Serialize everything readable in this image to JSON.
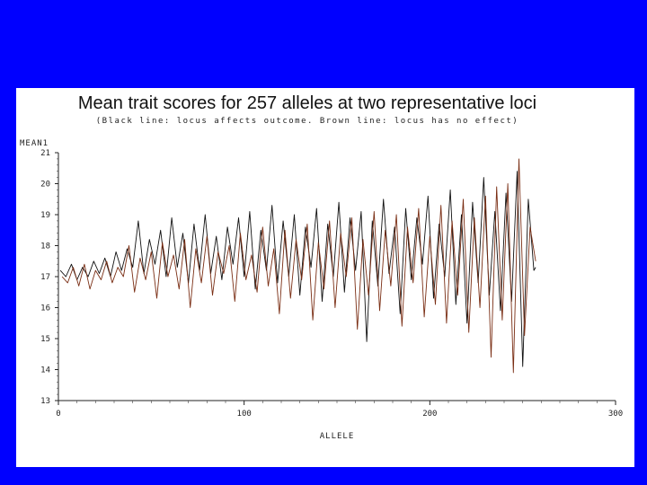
{
  "slide": {
    "background": "#0000ff"
  },
  "chart_data": {
    "type": "line",
    "title": "Mean trait scores for 257 alleles at two representative loci",
    "subtitle": "(Black line: locus affects outcome.  Brown line: locus has no effect)",
    "ylabel": "MEAN1",
    "xlabel": "ALLELE",
    "xlim": [
      0,
      300
    ],
    "ylim": [
      13,
      21
    ],
    "xticks": [
      0,
      100,
      200,
      300
    ],
    "yticks": [
      13,
      14,
      15,
      16,
      17,
      18,
      19,
      20,
      21
    ],
    "grid": false,
    "n_points": 257,
    "series": [
      {
        "name": "Black line: locus affects outcome",
        "color": "#111111",
        "x": [
          1,
          4,
          7,
          10,
          13,
          16,
          19,
          22,
          25,
          28,
          31,
          34,
          37,
          40,
          43,
          46,
          49,
          52,
          55,
          58,
          61,
          64,
          67,
          70,
          73,
          76,
          79,
          82,
          85,
          88,
          91,
          94,
          97,
          100,
          103,
          106,
          109,
          112,
          115,
          118,
          121,
          124,
          127,
          130,
          133,
          136,
          139,
          142,
          145,
          148,
          151,
          154,
          157,
          160,
          163,
          166,
          169,
          172,
          175,
          178,
          181,
          184,
          187,
          190,
          193,
          196,
          199,
          202,
          205,
          208,
          211,
          214,
          217,
          220,
          223,
          226,
          229,
          232,
          235,
          238,
          241,
          244,
          247,
          250,
          253,
          256,
          257
        ],
        "y": [
          17.2,
          17.0,
          17.4,
          16.9,
          17.3,
          17.0,
          17.5,
          17.1,
          17.6,
          17.0,
          17.8,
          17.2,
          17.9,
          17.3,
          18.8,
          17.1,
          18.2,
          17.4,
          18.5,
          17.0,
          18.9,
          17.3,
          18.4,
          16.8,
          18.7,
          17.2,
          19.0,
          17.1,
          18.3,
          16.9,
          18.6,
          17.4,
          18.9,
          17.0,
          19.1,
          16.6,
          18.5,
          17.2,
          19.3,
          16.8,
          18.8,
          17.0,
          19.0,
          16.4,
          18.6,
          17.3,
          19.2,
          16.2,
          18.7,
          17.0,
          19.4,
          16.5,
          18.9,
          17.2,
          19.1,
          14.9,
          18.8,
          16.7,
          19.5,
          17.1,
          18.6,
          15.8,
          19.2,
          16.9,
          18.9,
          17.4,
          19.6,
          16.3,
          18.7,
          17.0,
          19.8,
          16.1,
          19.0,
          15.5,
          19.4,
          16.8,
          20.2,
          16.4,
          19.1,
          15.9,
          19.7,
          16.2,
          20.4,
          14.1,
          19.5,
          17.2,
          17.3
        ]
      },
      {
        "name": "Brown line: locus has no effect",
        "color": "#7a2e14",
        "x": [
          2,
          5,
          8,
          11,
          14,
          17,
          20,
          23,
          26,
          29,
          32,
          35,
          38,
          41,
          44,
          47,
          50,
          53,
          56,
          59,
          62,
          65,
          68,
          71,
          74,
          77,
          80,
          83,
          86,
          89,
          92,
          95,
          98,
          101,
          104,
          107,
          110,
          113,
          116,
          119,
          122,
          125,
          128,
          131,
          134,
          137,
          140,
          143,
          146,
          149,
          152,
          155,
          158,
          161,
          164,
          167,
          170,
          173,
          176,
          179,
          182,
          185,
          188,
          191,
          194,
          197,
          200,
          203,
          206,
          209,
          212,
          215,
          218,
          221,
          224,
          227,
          230,
          233,
          236,
          239,
          242,
          245,
          248,
          251,
          254,
          257
        ],
        "y": [
          17.0,
          16.8,
          17.3,
          16.7,
          17.4,
          16.6,
          17.2,
          16.9,
          17.5,
          16.8,
          17.3,
          17.0,
          18.0,
          16.5,
          17.6,
          16.9,
          17.8,
          16.3,
          18.1,
          17.0,
          17.7,
          16.6,
          18.2,
          16.0,
          17.9,
          16.8,
          18.3,
          16.4,
          17.8,
          17.1,
          18.0,
          16.2,
          18.4,
          16.9,
          17.7,
          16.5,
          18.6,
          16.7,
          17.9,
          15.8,
          18.5,
          16.3,
          18.2,
          16.9,
          18.7,
          15.6,
          18.1,
          16.6,
          18.8,
          16.0,
          18.4,
          17.0,
          18.9,
          15.3,
          18.2,
          16.4,
          19.1,
          15.9,
          18.5,
          16.7,
          19.0,
          15.4,
          18.6,
          16.8,
          19.2,
          15.7,
          18.3,
          16.1,
          19.3,
          15.5,
          18.8,
          16.4,
          19.5,
          15.2,
          18.9,
          16.0,
          19.6,
          14.4,
          19.9,
          15.6,
          20.0,
          13.9,
          20.8,
          15.1,
          18.6,
          17.5
        ]
      }
    ]
  }
}
